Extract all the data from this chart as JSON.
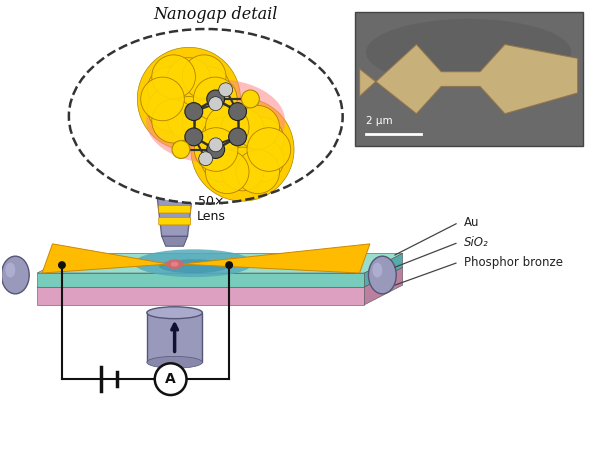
{
  "title": "Nanogap detail",
  "inset_label": "2 μm",
  "layer_labels": [
    "Au",
    "SiO₂",
    "Phosphor bronze"
  ],
  "lens_label": "50×\nLens",
  "bg_color": "#ffffff",
  "au_color": "#FFB800",
  "au_dark": "#CC8800",
  "sio2_color": "#88DDCC",
  "phosphor_color": "#E8A0D0",
  "lens_color": "#9999BB",
  "molecule_gray": "#666666",
  "molecule_white": "#DDDDDD",
  "molecule_yellow": "#FFD700",
  "raman_red": "#FF6666",
  "inset_bg": "#6A6A6A"
}
